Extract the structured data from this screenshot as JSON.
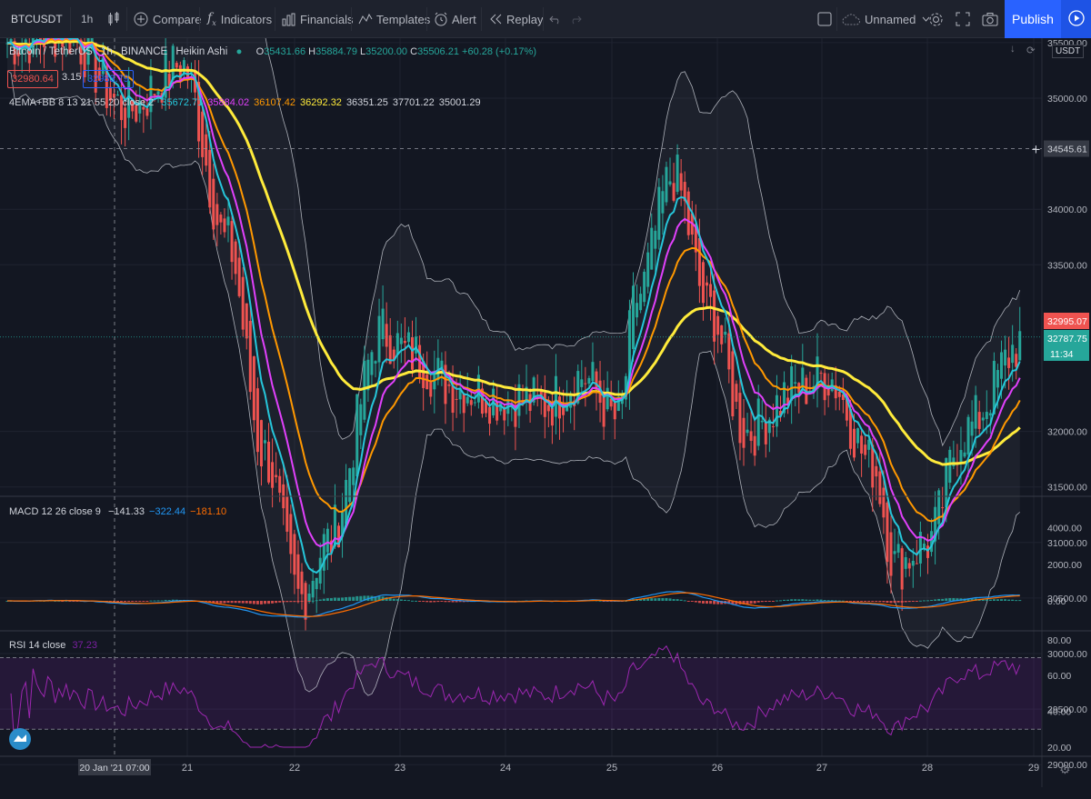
{
  "toolbar": {
    "symbol": "BTCUSDT",
    "interval": "1h",
    "compare": "Compare",
    "indicators": "Indicators",
    "financials": "Financials",
    "templates": "Templates",
    "alert": "Alert",
    "replay": "Replay",
    "layout_name": "Unnamed",
    "publish": "Publish"
  },
  "legend": {
    "pair": "Bitcoin / TetherUS",
    "interval": "1h",
    "exchange": "BINANCE",
    "chart_style": "Heikin Ashi",
    "o_label": "O",
    "o_value": "35431.66",
    "h_label": "H",
    "h_value": "35884.79",
    "l_label": "L",
    "l_value": "35200.00",
    "c_label": "C",
    "c_value": "35506.21",
    "change": "+60.28 (+0.17%)",
    "sell_price": "32980.64",
    "spread": "3.15",
    "buy_price": "32983.79",
    "ema_name": "4EMA+BB 8 13 21 55 20 close 2",
    "ema_values": [
      {
        "text": "35672.71",
        "color": "#26c6da"
      },
      {
        "text": "35884.02",
        "color": "#e040fb"
      },
      {
        "text": "36107.42",
        "color": "#ff9800"
      },
      {
        "text": "36292.32",
        "color": "#ffeb3b"
      },
      {
        "text": "36351.25",
        "color": "#d1d4dc"
      },
      {
        "text": "37701.22",
        "color": "#d1d4dc"
      },
      {
        "text": "35001.29",
        "color": "#d1d4dc"
      }
    ],
    "macd_name": "MACD 12 26 close 9",
    "macd_values": [
      {
        "text": "−141.33",
        "color": "#d1d4dc"
      },
      {
        "text": "−322.44",
        "color": "#2196f3"
      },
      {
        "text": "−181.10",
        "color": "#ff6d00"
      }
    ],
    "rsi_name": "RSI 14 close",
    "rsi_value": "37.23"
  },
  "price_axis": {
    "currency": "USDT",
    "ticks": [
      "35500.00",
      "35000.00",
      "34000.00",
      "33500.00",
      "32000.00",
      "31500.00",
      "31000.00",
      "30500.00",
      "30000.00",
      "29500.00",
      "29000.00",
      "28500.00"
    ],
    "crosshair_price": "34545.61",
    "last_price_red": "32995.07",
    "last_price_green": "32787.75",
    "countdown": "11:34"
  },
  "macd_axis": {
    "ticks": [
      "4000.00",
      "2000.00",
      "0.00"
    ]
  },
  "rsi_axis": {
    "ticks": [
      "80.00",
      "60.00",
      "40.00",
      "20.00"
    ]
  },
  "time_axis": {
    "crosshair_date": "20 Jan '21",
    "crosshair_time": "07:00",
    "labels": [
      "21",
      "22",
      "23",
      "24",
      "25",
      "26",
      "27",
      "28",
      "29"
    ]
  },
  "colors": {
    "background": "#131722",
    "up": "#26a69a",
    "down": "#ef5350",
    "ema8": "#26c6da",
    "ema13": "#e040fb",
    "ema21": "#ff9800",
    "ema55": "#ffeb3b",
    "accent": "#2962ff"
  },
  "chart_data": {
    "type": "candlestick",
    "title": "Bitcoin / TetherUS",
    "ylim": [
      28300,
      36200
    ],
    "x_labels": [
      "21",
      "22",
      "23",
      "24",
      "25",
      "26",
      "27",
      "28",
      "29"
    ],
    "series": [
      {
        "name": "4EMA+BB 8 13 21 55 20 close 2",
        "values": [
          35500,
          34900,
          33700,
          31800,
          30500,
          31500,
          32900,
          32700,
          32400,
          32300,
          32250,
          32500,
          33200,
          32100,
          33200,
          34300,
          33100,
          32000,
          32400,
          32500,
          31700,
          31500,
          30400,
          31000,
          32000,
          32800
        ]
      }
    ]
  }
}
